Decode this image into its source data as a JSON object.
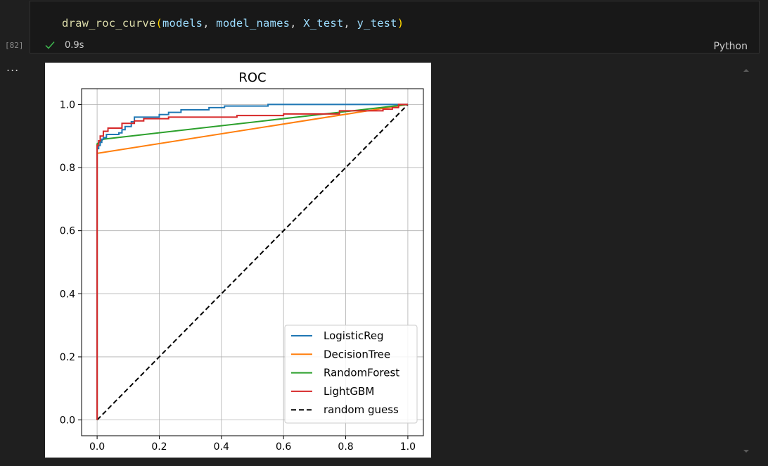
{
  "cell": {
    "code": {
      "function": "draw_roc_curve",
      "arg1": "models",
      "arg2": "model_names",
      "arg3": "X_test",
      "arg4": "y_test"
    },
    "execution_count": "[82]",
    "duration": "0.9s",
    "language": "Python",
    "status_icon": "check-icon"
  },
  "output": {
    "more_actions_label": "...",
    "more_actions_icon": "ellipsis-icon"
  },
  "chart_data": {
    "type": "line",
    "title": "ROC",
    "xlabel": "",
    "ylabel": "",
    "xlim": [
      -0.05,
      1.05
    ],
    "ylim": [
      -0.05,
      1.05
    ],
    "x_ticks": [
      "0.0",
      "0.2",
      "0.4",
      "0.6",
      "0.8",
      "1.0"
    ],
    "y_ticks": [
      "0.0",
      "0.2",
      "0.4",
      "0.6",
      "0.8",
      "1.0"
    ],
    "grid": true,
    "legend_position": "lower-right",
    "series": [
      {
        "name": "LogisticReg",
        "color": "#1f77b4",
        "style": "solid",
        "points": [
          [
            0,
            0
          ],
          [
            0,
            0.86
          ],
          [
            0.005,
            0.86
          ],
          [
            0.005,
            0.87
          ],
          [
            0.01,
            0.87
          ],
          [
            0.01,
            0.88
          ],
          [
            0.015,
            0.88
          ],
          [
            0.015,
            0.89
          ],
          [
            0.02,
            0.89
          ],
          [
            0.02,
            0.895
          ],
          [
            0.03,
            0.895
          ],
          [
            0.03,
            0.905
          ],
          [
            0.07,
            0.905
          ],
          [
            0.07,
            0.91
          ],
          [
            0.08,
            0.91
          ],
          [
            0.08,
            0.92
          ],
          [
            0.09,
            0.92
          ],
          [
            0.09,
            0.93
          ],
          [
            0.11,
            0.93
          ],
          [
            0.11,
            0.945
          ],
          [
            0.12,
            0.945
          ],
          [
            0.12,
            0.96
          ],
          [
            0.2,
            0.96
          ],
          [
            0.2,
            0.968
          ],
          [
            0.23,
            0.968
          ],
          [
            0.23,
            0.975
          ],
          [
            0.27,
            0.975
          ],
          [
            0.27,
            0.983
          ],
          [
            0.36,
            0.983
          ],
          [
            0.36,
            0.99
          ],
          [
            0.41,
            0.99
          ],
          [
            0.41,
            0.995
          ],
          [
            0.55,
            0.995
          ],
          [
            0.55,
            1.0
          ],
          [
            1.0,
            1.0
          ]
        ]
      },
      {
        "name": "DecisionTree",
        "color": "#ff7f0e",
        "style": "solid",
        "points": [
          [
            0,
            0
          ],
          [
            0,
            0.845
          ],
          [
            1,
            1
          ]
        ]
      },
      {
        "name": "RandomForest",
        "color": "#2ca02c",
        "style": "solid",
        "points": [
          [
            0,
            0
          ],
          [
            0,
            0.875
          ],
          [
            0.02,
            0.89
          ],
          [
            1,
            1
          ]
        ]
      },
      {
        "name": "LightGBM",
        "color": "#d62728",
        "style": "solid",
        "points": [
          [
            0,
            0
          ],
          [
            0,
            0.87
          ],
          [
            0.005,
            0.87
          ],
          [
            0.005,
            0.885
          ],
          [
            0.01,
            0.885
          ],
          [
            0.01,
            0.9
          ],
          [
            0.02,
            0.9
          ],
          [
            0.02,
            0.915
          ],
          [
            0.035,
            0.915
          ],
          [
            0.035,
            0.925
          ],
          [
            0.08,
            0.925
          ],
          [
            0.08,
            0.94
          ],
          [
            0.12,
            0.94
          ],
          [
            0.12,
            0.948
          ],
          [
            0.15,
            0.948
          ],
          [
            0.15,
            0.955
          ],
          [
            0.23,
            0.955
          ],
          [
            0.23,
            0.96
          ],
          [
            0.45,
            0.96
          ],
          [
            0.45,
            0.965
          ],
          [
            0.6,
            0.965
          ],
          [
            0.6,
            0.97
          ],
          [
            0.78,
            0.97
          ],
          [
            0.78,
            0.98
          ],
          [
            0.92,
            0.98
          ],
          [
            0.92,
            0.985
          ],
          [
            0.95,
            0.985
          ],
          [
            0.95,
            0.99
          ],
          [
            0.97,
            0.99
          ],
          [
            0.97,
            1.0
          ],
          [
            1.0,
            1.0
          ]
        ]
      },
      {
        "name": "random guess",
        "color": "#000000",
        "style": "dashed",
        "points": [
          [
            0,
            0
          ],
          [
            1,
            1
          ]
        ]
      }
    ]
  }
}
